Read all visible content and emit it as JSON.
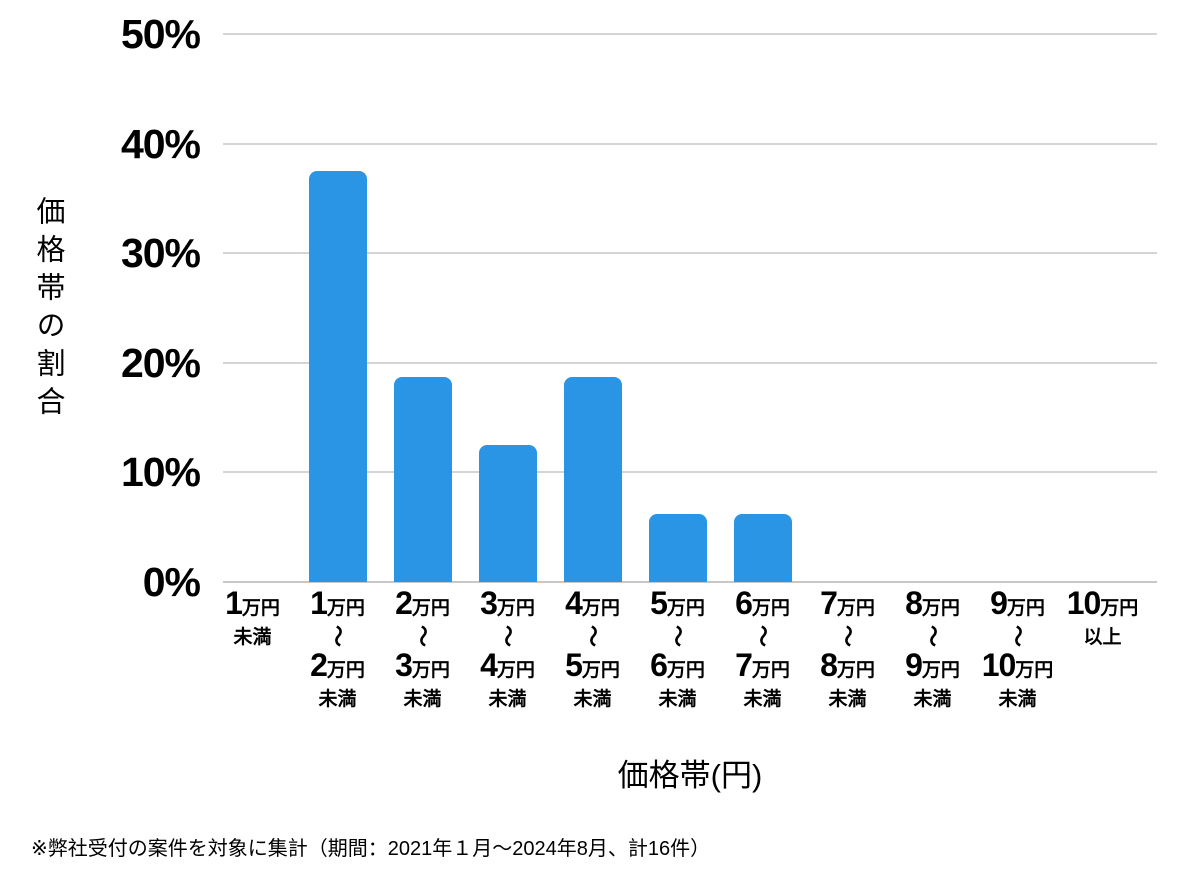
{
  "accent_colors": {
    "bar": "#2B95E5",
    "gridline": "#D5D5D5",
    "baseline": "#C8C8C8",
    "text": "#000000"
  },
  "chart_data": {
    "type": "bar",
    "title": "",
    "xlabel": "価格帯(円)",
    "ylabel": "価格帯の割合",
    "ylim": [
      0,
      50
    ],
    "ytick_step": 10,
    "yticks": [
      "0%",
      "10%",
      "20%",
      "30%",
      "40%",
      "50%"
    ],
    "grid": true,
    "legend_position": "none",
    "categories": [
      "1万円未満",
      "1万円〜2万円未満",
      "2万円〜3万円未満",
      "3万円〜4万円未満",
      "4万円〜5万円未満",
      "5万円〜6万円未満",
      "6万円〜7万円未満",
      "7万円〜8万円未満",
      "8万円〜9万円未満",
      "9万円〜10万円未満",
      "10万円以上"
    ],
    "values": [
      0,
      37.5,
      18.75,
      12.5,
      18.75,
      6.25,
      6.25,
      0,
      0,
      0,
      0
    ],
    "category_display": [
      {
        "lines": [
          {
            "num": "1",
            "unit": "万円"
          },
          {
            "sub": "未満"
          }
        ]
      },
      {
        "lines": [
          {
            "num": "1",
            "unit": "万円"
          },
          {
            "wave": "〜"
          },
          {
            "num": "2",
            "unit": "万円"
          },
          {
            "sub": "未満"
          }
        ]
      },
      {
        "lines": [
          {
            "num": "2",
            "unit": "万円"
          },
          {
            "wave": "〜"
          },
          {
            "num": "3",
            "unit": "万円"
          },
          {
            "sub": "未満"
          }
        ]
      },
      {
        "lines": [
          {
            "num": "3",
            "unit": "万円"
          },
          {
            "wave": "〜"
          },
          {
            "num": "4",
            "unit": "万円"
          },
          {
            "sub": "未満"
          }
        ]
      },
      {
        "lines": [
          {
            "num": "4",
            "unit": "万円"
          },
          {
            "wave": "〜"
          },
          {
            "num": "5",
            "unit": "万円"
          },
          {
            "sub": "未満"
          }
        ]
      },
      {
        "lines": [
          {
            "num": "5",
            "unit": "万円"
          },
          {
            "wave": "〜"
          },
          {
            "num": "6",
            "unit": "万円"
          },
          {
            "sub": "未満"
          }
        ]
      },
      {
        "lines": [
          {
            "num": "6",
            "unit": "万円"
          },
          {
            "wave": "〜"
          },
          {
            "num": "7",
            "unit": "万円"
          },
          {
            "sub": "未満"
          }
        ]
      },
      {
        "lines": [
          {
            "num": "7",
            "unit": "万円"
          },
          {
            "wave": "〜"
          },
          {
            "num": "8",
            "unit": "万円"
          },
          {
            "sub": "未満"
          }
        ]
      },
      {
        "lines": [
          {
            "num": "8",
            "unit": "万円"
          },
          {
            "wave": "〜"
          },
          {
            "num": "9",
            "unit": "万円"
          },
          {
            "sub": "未満"
          }
        ]
      },
      {
        "lines": [
          {
            "num": "9",
            "unit": "万円"
          },
          {
            "wave": "〜"
          },
          {
            "num": "10",
            "unit": "万円"
          },
          {
            "sub": "未満"
          }
        ]
      },
      {
        "lines": [
          {
            "num": "10",
            "unit": "万円"
          },
          {
            "sub": "以上"
          }
        ]
      }
    ]
  },
  "footnote": {
    "text": "※弊社受付の案件を対象に集計（期間：2021年１月～2024年8月、計16件）"
  }
}
